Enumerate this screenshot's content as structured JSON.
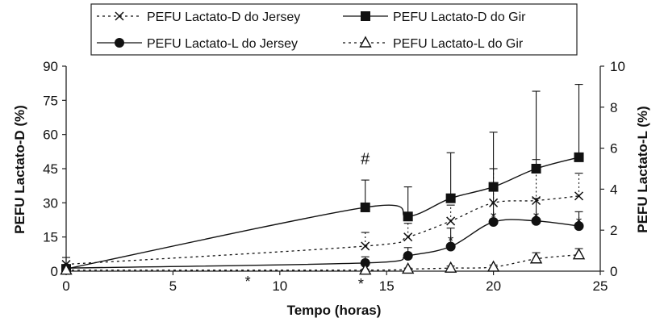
{
  "chart_data": {
    "type": "line",
    "title": "",
    "xlabel": "Tempo (horas)",
    "ylabel_left": "PEFU Lactato-D (%)",
    "ylabel_right": "PEFU Lactato-L (%)",
    "xlim": [
      0,
      25
    ],
    "ylim_left": [
      0,
      90
    ],
    "ylim_right": [
      0,
      10
    ],
    "x_ticks": [
      "0",
      "5",
      "10",
      "15",
      "20",
      "25"
    ],
    "y_left_ticks": [
      "0",
      "15",
      "30",
      "45",
      "60",
      "75",
      "90"
    ],
    "y_right_ticks": [
      "0",
      "2",
      "4",
      "6",
      "8",
      "10"
    ],
    "grid": false,
    "legend_position": "top",
    "series": [
      {
        "name": "PEFU Lactato-D do Jersey",
        "axis": "left",
        "marker": "x",
        "line": "dotted",
        "x": [
          0,
          14,
          16,
          18,
          20,
          22,
          24
        ],
        "y": [
          3,
          11,
          15,
          22,
          30,
          31,
          33
        ],
        "err": [
          3,
          6,
          6,
          7,
          15,
          18,
          10
        ]
      },
      {
        "name": "PEFU Lactato-D do Gir",
        "axis": "left",
        "marker": "square",
        "line": "solid",
        "x": [
          0,
          14,
          16,
          18,
          20,
          22,
          24
        ],
        "y": [
          1,
          28,
          24,
          32,
          37,
          45,
          50
        ],
        "err": [
          1,
          12,
          13,
          20,
          24,
          34,
          32
        ]
      },
      {
        "name": "PEFU Lactato-L do Jersey",
        "axis": "right",
        "marker": "circle",
        "line": "solid",
        "x": [
          0,
          14,
          16,
          18,
          20,
          22,
          24
        ],
        "y": [
          0.15,
          0.4,
          0.75,
          1.2,
          2.4,
          2.45,
          2.2
        ],
        "err": [
          0.1,
          0.3,
          0.4,
          0.9,
          1.6,
          1.1,
          0.7
        ]
      },
      {
        "name": "PEFU Lactato-L do Gir",
        "axis": "right",
        "marker": "triangle",
        "line": "dotted",
        "x": [
          0,
          14,
          16,
          18,
          20,
          22,
          24
        ],
        "y": [
          0.05,
          0.05,
          0.1,
          0.15,
          0.2,
          0.6,
          0.8
        ],
        "err": [
          0.05,
          0.05,
          0.05,
          0.1,
          0.1,
          0.3,
          0.3
        ]
      }
    ],
    "annotations": [
      {
        "text": "#",
        "x": 14,
        "y": 49,
        "axis": "left"
      },
      {
        "text": "*",
        "x": 8.5,
        "y": -2.5,
        "axis": "left"
      },
      {
        "text": "*",
        "x": 13.8,
        "y": -3.5,
        "axis": "left"
      },
      {
        "text": "*",
        "x": 18,
        "y": 1.7,
        "axis": "right"
      },
      {
        "text": "*",
        "x": 20,
        "y": 2.85,
        "axis": "right"
      },
      {
        "text": "*",
        "x": 22,
        "y": 2.85,
        "axis": "right"
      },
      {
        "text": "*",
        "x": 24,
        "y": 2.6,
        "axis": "right"
      }
    ]
  }
}
